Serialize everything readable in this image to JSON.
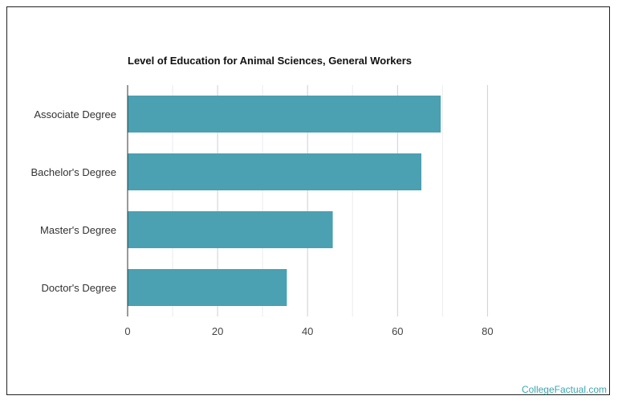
{
  "chart_data": {
    "type": "bar",
    "orientation": "horizontal",
    "title": "Level of Education for Animal Sciences, General Workers",
    "categories": [
      "Associate Degree",
      "Bachelor's Degree",
      "Master's Degree",
      "Doctor's Degree"
    ],
    "values": [
      69.6,
      65.3,
      45.6,
      35.4
    ],
    "xlabel": "",
    "ylabel": "",
    "xlim": [
      0,
      100
    ],
    "xticks": [
      0,
      20,
      40,
      60,
      80
    ],
    "grid": true,
    "bar_color": "#4ba0b1",
    "legend": "none"
  },
  "watermark": "CollegeFactual.com"
}
